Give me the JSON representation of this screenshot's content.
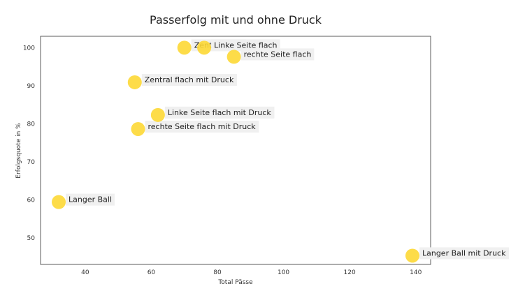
{
  "chart_data": {
    "type": "scatter",
    "title": "Passerfolg mit und ohne Druck",
    "xlabel": "Total Pässe",
    "ylabel": "Erfolgsquote in %",
    "xlim": [
      26.5,
      144.5
    ],
    "ylim": [
      43,
      103
    ],
    "xticks": [
      40,
      60,
      80,
      100,
      120,
      140
    ],
    "yticks": [
      50,
      60,
      70,
      80,
      90,
      100
    ],
    "grid": false,
    "marker_color": "#FDD835",
    "label_box_color": "#F0F0F0",
    "points": [
      {
        "label": "Zentral flach",
        "x": 70,
        "y": 100
      },
      {
        "label": "Linke Seite flach",
        "x": 76,
        "y": 100
      },
      {
        "label": "rechte Seite flach",
        "x": 85,
        "y": 97.6
      },
      {
        "label": "Zentral flach mit Druck",
        "x": 55,
        "y": 90.9
      },
      {
        "label": "Linke Seite flach mit Druck",
        "x": 62,
        "y": 82.3
      },
      {
        "label": "rechte Seite flach mit Druck",
        "x": 56,
        "y": 78.6
      },
      {
        "label": "Langer Ball",
        "x": 32,
        "y": 59.4
      },
      {
        "label": "Langer Ball mit Druck",
        "x": 139,
        "y": 45.3
      }
    ]
  }
}
